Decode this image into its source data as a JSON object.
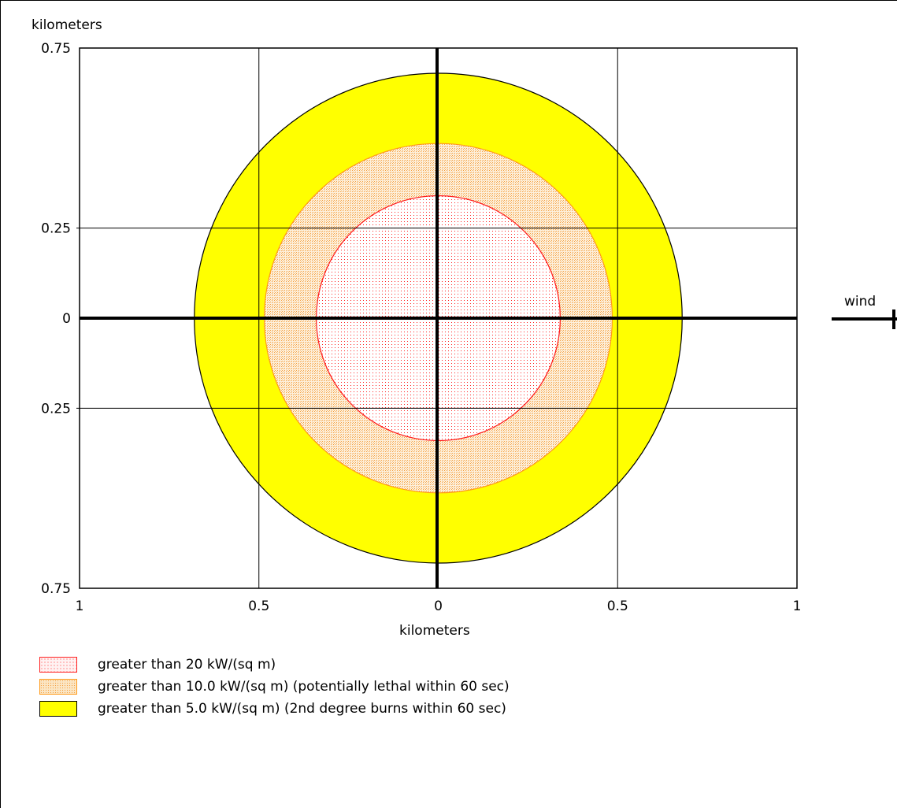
{
  "chart_data": {
    "type": "contour",
    "x_axis": {
      "label": "kilometers",
      "ticks": [
        {
          "value": -1,
          "label": "1"
        },
        {
          "value": -0.5,
          "label": "0.5"
        },
        {
          "value": 0,
          "label": "0"
        },
        {
          "value": 0.5,
          "label": "0.5"
        },
        {
          "value": 1,
          "label": "1"
        }
      ],
      "range": [
        -1,
        1
      ]
    },
    "y_axis": {
      "label": "kilometers",
      "ticks": [
        {
          "value": 0.75,
          "label": "0.75"
        },
        {
          "value": 0.25,
          "label": "0.25"
        },
        {
          "value": 0,
          "label": "0"
        },
        {
          "value": -0.25,
          "label": "0.25"
        },
        {
          "value": -0.75,
          "label": "0.75"
        }
      ],
      "range": [
        -0.75,
        0.75
      ]
    },
    "grid": true,
    "wind_label": "wind",
    "zones": [
      {
        "label": "greater than 5.0 kW/(sq m) (2nd degree burns within 60 sec)",
        "radius_km": 0.68,
        "fill": "#ffff00",
        "stroke": "#000000",
        "pattern": "solid"
      },
      {
        "label": "greater than 10.0 kW/(sq m) (potentially lethal within 60 sec)",
        "radius_km": 0.485,
        "fill": "#fbe2bc",
        "stroke": "#ff9a1a",
        "pattern": "dots-orange"
      },
      {
        "label": "greater than 20 kW/(sq m)",
        "radius_km": 0.34,
        "fill": "#fff2f2",
        "stroke": "#ff1a1a",
        "pattern": "dots-red"
      }
    ],
    "legend": [
      {
        "label": "greater than 20 kW/(sq m)",
        "pattern": "dots-red"
      },
      {
        "label": "greater than 10.0 kW/(sq m) (potentially lethal within 60 sec)",
        "pattern": "dots-orange"
      },
      {
        "label": "greater than 5.0 kW/(sq m) (2nd degree burns within 60 sec)",
        "pattern": "solid"
      }
    ]
  }
}
